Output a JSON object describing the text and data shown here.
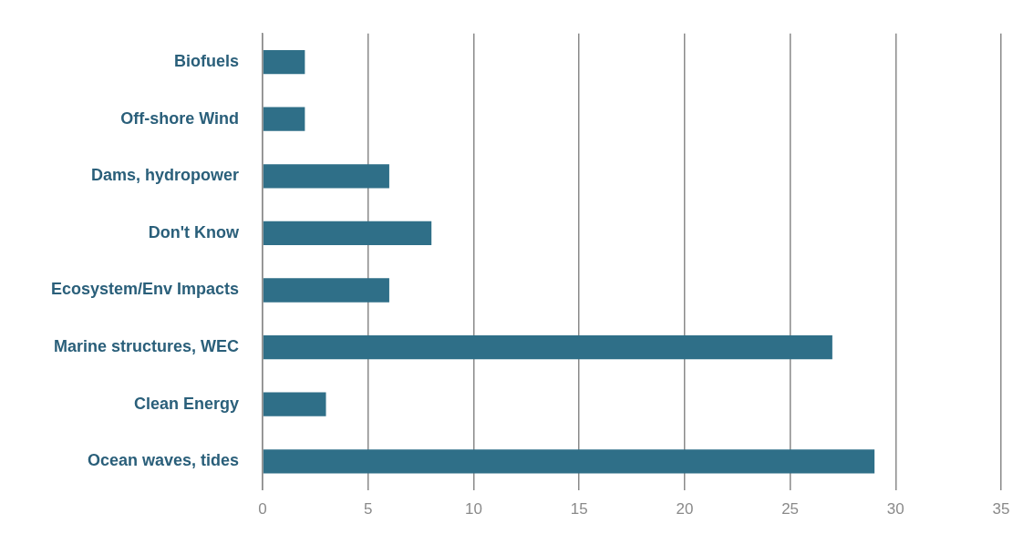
{
  "chart_data": {
    "type": "bar",
    "orientation": "horizontal",
    "categories": [
      "Biofuels",
      "Off-shore Wind",
      "Dams, hydropower",
      "Don't Know",
      "Ecosystem/Env Impacts",
      "Marine structures, WEC",
      "Clean Energy",
      "Ocean waves, tides"
    ],
    "values": [
      2,
      2,
      6,
      8,
      6,
      27,
      3,
      29
    ],
    "color": "#2f6f88",
    "xlim": [
      0,
      35
    ],
    "xticks": [
      0,
      5,
      10,
      15,
      20,
      25,
      30,
      35
    ],
    "grid": "x",
    "legend": false
  }
}
